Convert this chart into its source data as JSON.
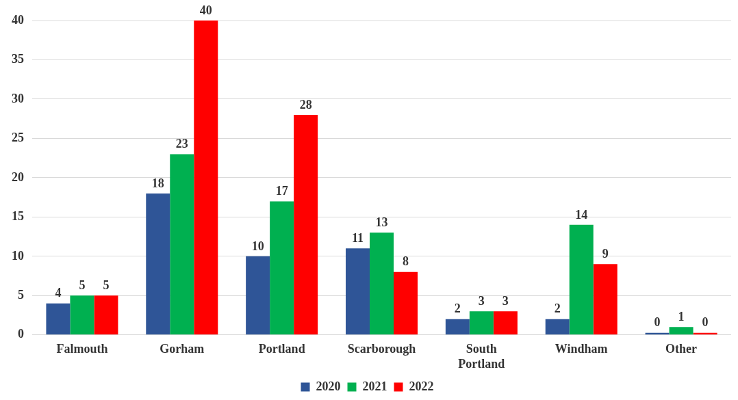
{
  "chart_data": {
    "type": "bar",
    "categories": [
      "Falmouth",
      "Gorham",
      "Portland",
      "Scarborough",
      "South Portland",
      "Windham",
      "Other"
    ],
    "series": [
      {
        "name": "2020",
        "color": "#2f5597",
        "values": [
          4,
          18,
          10,
          11,
          2,
          2,
          0
        ]
      },
      {
        "name": "2021",
        "color": "#00b050",
        "values": [
          5,
          23,
          17,
          13,
          3,
          14,
          1
        ]
      },
      {
        "name": "2022",
        "color": "#ff0000",
        "values": [
          5,
          40,
          28,
          8,
          3,
          9,
          0
        ]
      }
    ],
    "ylim": [
      0,
      40
    ],
    "yticks": [
      0,
      5,
      10,
      15,
      20,
      25,
      30,
      35,
      40
    ],
    "grid": "y",
    "legend": "bottom",
    "data_labels": true
  }
}
